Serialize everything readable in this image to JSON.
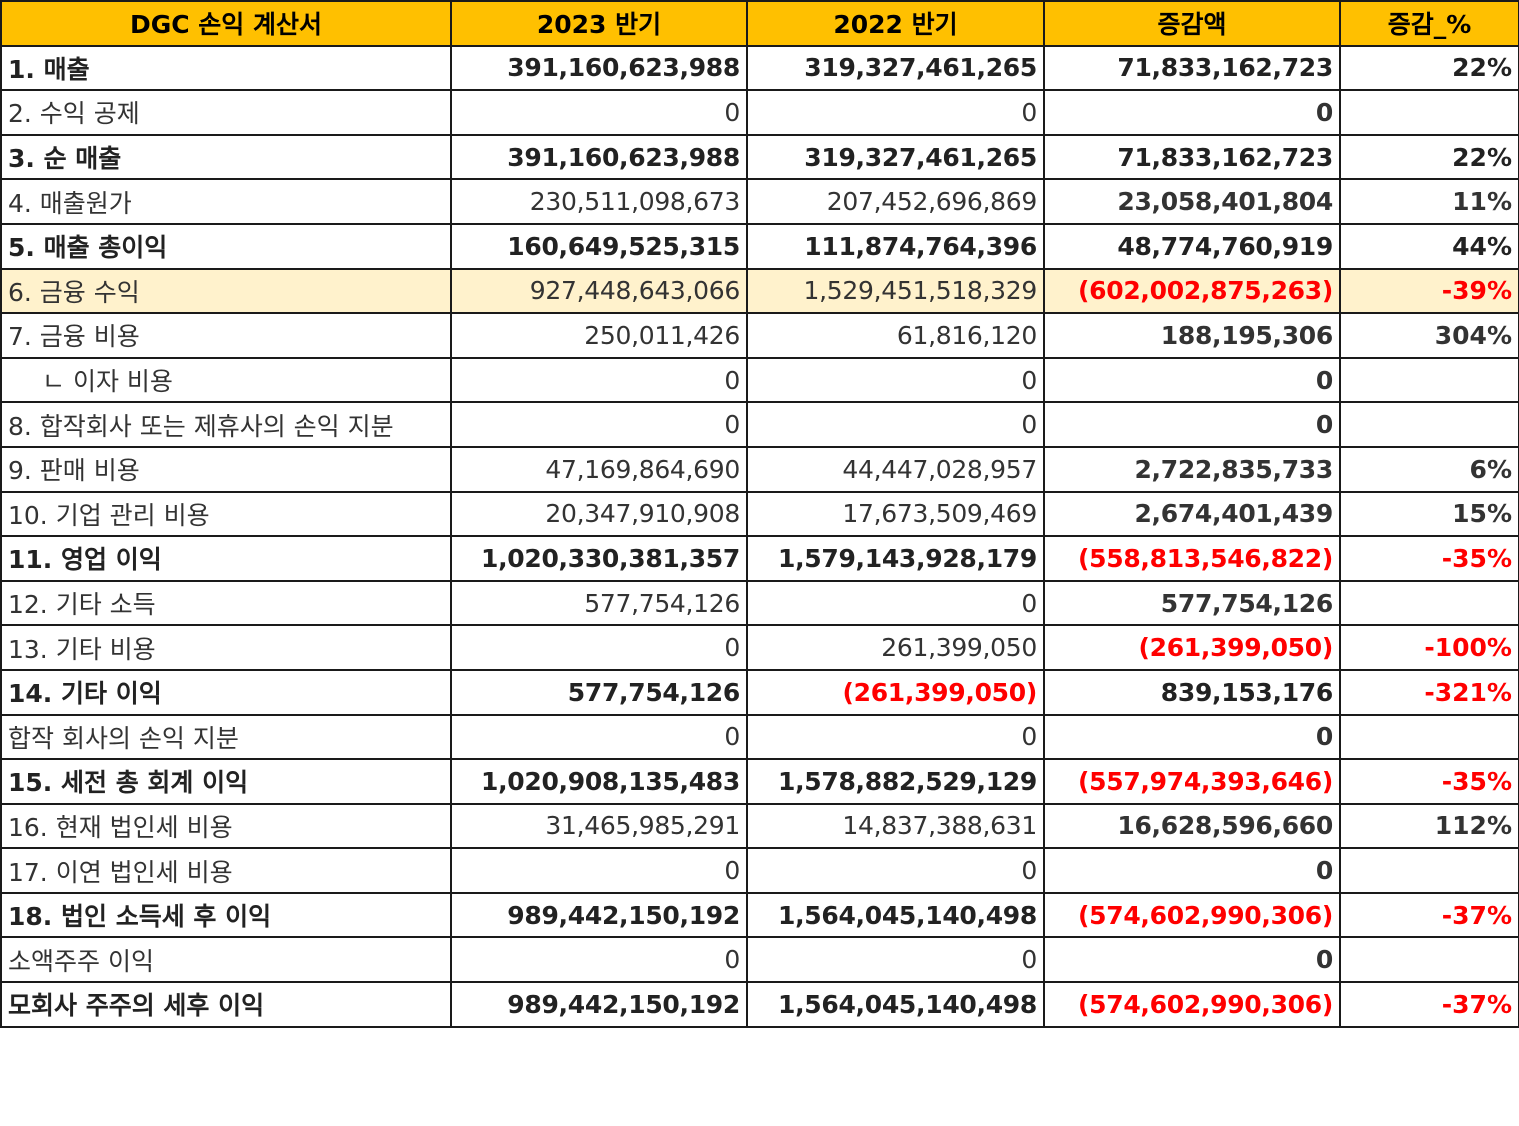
{
  "header": {
    "col_item": "DGC 손익 계산서",
    "col_2023": "2023 반기",
    "col_2022": "2022 반기",
    "col_diff": "증감액",
    "col_pct": "증감_%"
  },
  "rows": [
    {
      "label": "1. 매출",
      "v2023": "391,160,623,988",
      "v2022": "319,327,461,265",
      "diff": "71,833,162,723",
      "pct": "22%"
    },
    {
      "label": "2. 수익 공제",
      "v2023": "0",
      "v2022": "0",
      "diff": "0",
      "pct": ""
    },
    {
      "label": "3. 순 매출",
      "v2023": "391,160,623,988",
      "v2022": "319,327,461,265",
      "diff": "71,833,162,723",
      "pct": "22%"
    },
    {
      "label": "4. 매출원가",
      "v2023": "230,511,098,673",
      "v2022": "207,452,696,869",
      "diff": "23,058,401,804",
      "pct": "11%"
    },
    {
      "label": "5. 매출 총이익",
      "v2023": "160,649,525,315",
      "v2022": "111,874,764,396",
      "diff": "48,774,760,919",
      "pct": "44%"
    },
    {
      "label": "6. 금융 수익",
      "v2023": "927,448,643,066",
      "v2022": "1,529,451,518,329",
      "diff": "(602,002,875,263)",
      "pct": "-39%"
    },
    {
      "label": "7. 금융 비용",
      "v2023": "250,011,426",
      "v2022": "61,816,120",
      "diff": "188,195,306",
      "pct": "304%"
    },
    {
      "label": "ㄴ 이자 비용",
      "v2023": "0",
      "v2022": "0",
      "diff": "0",
      "pct": ""
    },
    {
      "label": "8. 합작회사 또는 제휴사의 손익 지분",
      "v2023": "0",
      "v2022": "0",
      "diff": "0",
      "pct": ""
    },
    {
      "label": "9. 판매 비용",
      "v2023": "47,169,864,690",
      "v2022": "44,447,028,957",
      "diff": "2,722,835,733",
      "pct": "6%"
    },
    {
      "label": "10. 기업 관리 비용",
      "v2023": "20,347,910,908",
      "v2022": "17,673,509,469",
      "diff": "2,674,401,439",
      "pct": "15%"
    },
    {
      "label": "11. 영업 이익",
      "v2023": "1,020,330,381,357",
      "v2022": "1,579,143,928,179",
      "diff": "(558,813,546,822)",
      "pct": "-35%"
    },
    {
      "label": "12. 기타 소득",
      "v2023": "577,754,126",
      "v2022": "0",
      "diff": "577,754,126",
      "pct": ""
    },
    {
      "label": "13. 기타 비용",
      "v2023": "0",
      "v2022": "261,399,050",
      "diff": "(261,399,050)",
      "pct": "-100%"
    },
    {
      "label": "14. 기타 이익",
      "v2023": "577,754,126",
      "v2022": "(261,399,050)",
      "diff": "839,153,176",
      "pct": "-321%"
    },
    {
      "label": "합작 회사의 손익 지분",
      "v2023": "0",
      "v2022": "0",
      "diff": "0",
      "pct": ""
    },
    {
      "label": "15. 세전 총 회계 이익",
      "v2023": "1,020,908,135,483",
      "v2022": "1,578,882,529,129",
      "diff": "(557,974,393,646)",
      "pct": "-35%"
    },
    {
      "label": "16. 현재 법인세 비용",
      "v2023": "31,465,985,291",
      "v2022": "14,837,388,631",
      "diff": "16,628,596,660",
      "pct": "112%"
    },
    {
      "label": "17. 이연 법인세 비용",
      "v2023": "0",
      "v2022": "0",
      "diff": "0",
      "pct": ""
    },
    {
      "label": "18. 법인 소득세 후 이익",
      "v2023": "989,442,150,192",
      "v2022": "1,564,045,140,498",
      "diff": "(574,602,990,306)",
      "pct": "-37%"
    },
    {
      "label": "소액주주 이익",
      "v2023": "0",
      "v2022": "0",
      "diff": "0",
      "pct": ""
    },
    {
      "label": "모회사 주주의 세후 이익",
      "v2023": "989,442,150,192",
      "v2022": "1,564,045,140,498",
      "diff": "(574,602,990,306)",
      "pct": "-37%"
    }
  ],
  "colors": {
    "header_bg": "#ffc000",
    "highlight_bg": "#fff2cc",
    "negative": "#ff0000"
  }
}
